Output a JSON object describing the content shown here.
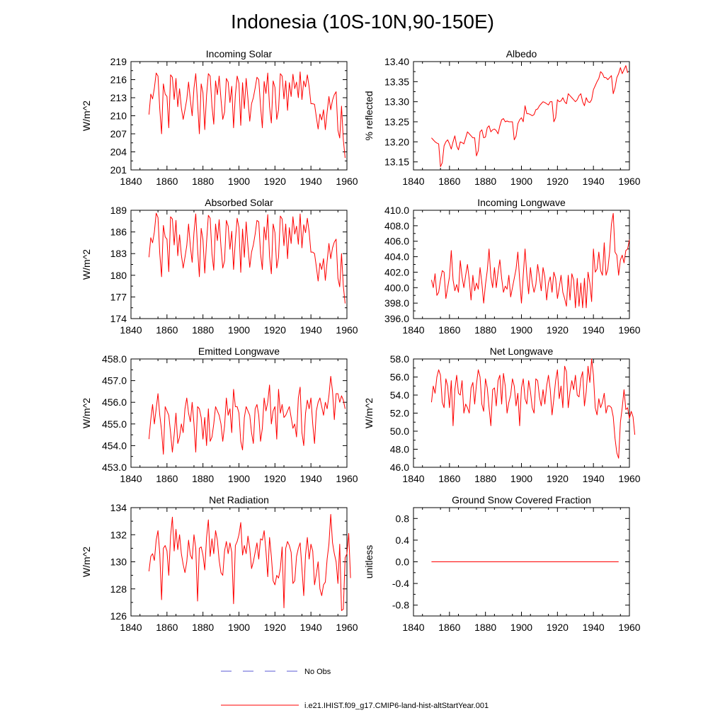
{
  "figure": {
    "title": "Indonesia (10S-10N,90-150E)"
  },
  "colors": {
    "model": "#ff0000",
    "obs": "#5a5ad6",
    "axis": "#000000"
  },
  "legend": {
    "items": [
      {
        "label": "No Obs",
        "style": "dashed",
        "color": "#5a5ad6"
      },
      {
        "label": "i.e21.IHIST.f09_g17.CMIP6-land-hist-altStartYear.001",
        "style": "solid",
        "color": "#ff0000"
      }
    ]
  },
  "chart_data": [
    {
      "type": "line",
      "title": "Incoming Solar",
      "ylabel": "W/m^2",
      "xlim": [
        1840,
        1960
      ],
      "ylim": [
        201,
        219
      ],
      "xticks": [
        "1840",
        "1860",
        "1880",
        "1900",
        "1920",
        "1940",
        "1960"
      ],
      "yticks": [
        "201",
        "204",
        "207",
        "210",
        "213",
        "216",
        "219"
      ],
      "x_start": 1850,
      "series": [
        {
          "values": [
            210.2,
            213.6,
            212.8,
            214.6,
            217.1,
            216.6,
            211.1,
            207.0,
            215.3,
            213.6,
            213.2,
            208.0,
            216.8,
            216.4,
            212.7,
            216.2,
            211.5,
            214.5,
            211.3,
            209.4,
            211.0,
            212.7,
            215.6,
            212.6,
            210.0,
            214.6,
            217.0,
            212.2,
            207.0,
            215.3,
            213.8,
            207.7,
            213.4,
            217.0,
            216.6,
            211.6,
            208.6,
            215.8,
            213.5,
            216.6,
            212.8,
            209.4,
            210.6,
            216.2,
            215.6,
            212.2,
            214.9,
            208.0,
            213.4,
            216.6,
            215.4,
            208.4,
            215.5,
            211.2,
            216.2,
            212.8,
            209.1,
            212.0,
            213.0,
            214.6,
            216.4,
            216.0,
            211.6,
            208.0,
            215.7,
            213.7,
            217.1,
            211.5,
            208.8,
            215.8,
            214.7,
            209.4,
            211.0,
            217.0,
            216.6,
            212.8,
            215.8,
            210.9,
            215.5,
            213.2,
            216.9,
            214.5,
            215.6,
            213.0,
            217.3,
            212.7,
            215.8,
            214.8,
            216.8,
            214.8,
            212.0,
            212.0,
            211.9,
            209.8,
            207.8,
            210.3,
            209.3,
            211.0,
            207.7,
            210.6,
            213.2,
            211.0,
            212.6,
            213.5,
            214.0,
            207.6,
            206.3,
            211.6,
            206.0,
            203.0
          ]
        }
      ]
    },
    {
      "type": "line",
      "title": "Albedo",
      "ylabel": "% reflected",
      "xlim": [
        1840,
        1960
      ],
      "ylim": [
        13.13,
        13.4
      ],
      "xticks": [
        "1840",
        "1860",
        "1880",
        "1900",
        "1920",
        "1940",
        "1960"
      ],
      "yticks": [
        "13.15",
        "13.20",
        "13.25",
        "13.30",
        "13.35",
        "13.40"
      ],
      "x_start": 1850,
      "series": [
        {
          "values": [
            13.21,
            13.205,
            13.2,
            13.197,
            13.195,
            13.138,
            13.148,
            13.19,
            13.2,
            13.205,
            13.195,
            13.182,
            13.2,
            13.215,
            13.19,
            13.18,
            13.2,
            13.198,
            13.195,
            13.21,
            13.225,
            13.22,
            13.215,
            13.21,
            13.21,
            13.165,
            13.178,
            13.225,
            13.23,
            13.21,
            13.212,
            13.235,
            13.24,
            13.225,
            13.23,
            13.232,
            13.228,
            13.22,
            13.24,
            13.255,
            13.258,
            13.25,
            13.252,
            13.25,
            13.25,
            13.25,
            13.205,
            13.214,
            13.245,
            13.255,
            13.26,
            13.25,
            13.29,
            13.27,
            13.27,
            13.268,
            13.265,
            13.268,
            13.28,
            13.282,
            13.29,
            13.295,
            13.3,
            13.298,
            13.295,
            13.292,
            13.3,
            13.3,
            13.25,
            13.26,
            13.305,
            13.3,
            13.302,
            13.31,
            13.3,
            13.295,
            13.32,
            13.315,
            13.31,
            13.305,
            13.3,
            13.305,
            13.315,
            13.32,
            13.3,
            13.29,
            13.31,
            13.3,
            13.298,
            13.305,
            13.33,
            13.34,
            13.35,
            13.358,
            13.375,
            13.37,
            13.36,
            13.36,
            13.355,
            13.36,
            13.365,
            13.32,
            13.335,
            13.36,
            13.37,
            13.385,
            13.37,
            13.38,
            13.39,
            13.372
          ]
        }
      ]
    },
    {
      "type": "line",
      "title": "Absorbed Solar",
      "ylabel": "W/m^2",
      "xlim": [
        1840,
        1960
      ],
      "ylim": [
        174,
        189
      ],
      "xticks": [
        "1840",
        "1860",
        "1880",
        "1900",
        "1920",
        "1940",
        "1960"
      ],
      "yticks": [
        "174",
        "177",
        "180",
        "183",
        "186",
        "189"
      ],
      "x_start": 1850,
      "series": [
        {
          "values": [
            182.5,
            185.2,
            184.5,
            186.0,
            188.6,
            188.0,
            183.0,
            179.8,
            186.9,
            185.3,
            185.0,
            180.5,
            188.1,
            187.8,
            184.2,
            187.6,
            182.7,
            185.6,
            182.8,
            181.0,
            182.5,
            184.1,
            187.1,
            184.0,
            181.8,
            185.9,
            188.5,
            183.7,
            179.8,
            186.5,
            184.9,
            180.3,
            184.6,
            188.3,
            187.9,
            183.0,
            180.7,
            187.1,
            184.8,
            187.7,
            184.0,
            181.0,
            182.0,
            187.6,
            186.8,
            183.6,
            186.1,
            180.8,
            184.8,
            187.9,
            186.6,
            180.4,
            186.4,
            182.5,
            187.4,
            184.0,
            181.1,
            183.2,
            184.2,
            185.7,
            187.6,
            187.4,
            183.0,
            180.8,
            186.7,
            184.9,
            188.4,
            182.6,
            180.2,
            187.1,
            185.9,
            181.0,
            182.5,
            188.2,
            187.8,
            184.1,
            187.1,
            182.3,
            186.6,
            184.4,
            188.1,
            185.7,
            186.8,
            184.3,
            188.5,
            183.8,
            187.0,
            185.9,
            187.9,
            186.0,
            183.2,
            183.2,
            183.0,
            181.2,
            179.2,
            181.7,
            180.8,
            182.3,
            179.3,
            181.9,
            184.4,
            182.3,
            183.8,
            184.6,
            185.0,
            179.6,
            178.4,
            183.0,
            178.5,
            176.1
          ]
        }
      ]
    },
    {
      "type": "line",
      "title": "Incoming Longwave",
      "ylabel": "",
      "xlim": [
        1840,
        1960
      ],
      "ylim": [
        396.0,
        410.0
      ],
      "xticks": [
        "1840",
        "1860",
        "1880",
        "1900",
        "1920",
        "1940",
        "1960"
      ],
      "yticks": [
        "396.0",
        "398.0",
        "400.0",
        "402.0",
        "404.0",
        "406.0",
        "408.0",
        "410.0"
      ],
      "x_start": 1850,
      "series": [
        {
          "values": [
            401.0,
            400.0,
            401.8,
            399.0,
            399.4,
            401.0,
            402.2,
            402.0,
            398.6,
            400.0,
            401.4,
            404.8,
            401.0,
            399.6,
            400.4,
            399.4,
            403.5,
            401.4,
            400.0,
            401.6,
            403.0,
            401.0,
            398.4,
            401.6,
            399.6,
            400.6,
            399.8,
            402.6,
            400.6,
            398.0,
            400.4,
            402.2,
            405.0,
            401.4,
            400.0,
            402.6,
            400.0,
            402.0,
            403.6,
            401.2,
            399.4,
            400.2,
            399.8,
            401.6,
            398.8,
            400.0,
            401.2,
            402.4,
            404.6,
            401.0,
            398.0,
            401.6,
            405.0,
            401.6,
            399.2,
            402.6,
            400.6,
            399.4,
            400.4,
            403.0,
            401.4,
            399.6,
            402.6,
            401.4,
            398.4,
            400.6,
            401.4,
            399.4,
            402.0,
            401.2,
            398.6,
            400.0,
            401.6,
            399.4,
            398.6,
            397.6,
            401.6,
            398.4,
            401.8,
            401.0,
            397.4,
            401.2,
            397.6,
            400.6,
            397.4,
            401.2,
            397.4,
            402.0,
            400.6,
            398.2,
            405.0,
            402.0,
            402.4,
            404.6,
            402.2,
            401.6,
            405.8,
            401.6,
            402.4,
            404.6,
            408.2,
            409.6,
            404.6,
            404.2,
            401.6,
            403.6,
            404.2,
            403.2,
            404.8,
            405.0,
            406.2
          ]
        }
      ]
    },
    {
      "type": "line",
      "title": "Emitted Longwave",
      "ylabel": "W/m^2",
      "xlim": [
        1840,
        1960
      ],
      "ylim": [
        453.0,
        458.0
      ],
      "xticks": [
        "1840",
        "1860",
        "1880",
        "1900",
        "1920",
        "1940",
        "1960"
      ],
      "yticks": [
        "453.0",
        "454.0",
        "455.0",
        "456.0",
        "457.0",
        "458.0"
      ],
      "x_start": 1850,
      "series": [
        {
          "values": [
            454.3,
            455.2,
            455.9,
            455.0,
            455.7,
            456.4,
            455.4,
            454.7,
            453.6,
            455.8,
            455.6,
            455.4,
            454.6,
            453.7,
            454.5,
            455.5,
            454.1,
            454.4,
            455.0,
            454.6,
            455.7,
            456.2,
            455.5,
            455.1,
            456.0,
            455.0,
            453.7,
            455.8,
            455.7,
            455.3,
            454.3,
            455.3,
            454.0,
            455.7,
            454.2,
            454.4,
            455.0,
            455.8,
            455.6,
            455.4,
            455.0,
            454.2,
            454.9,
            456.2,
            455.4,
            455.7,
            454.6,
            456.6,
            455.8,
            455.8,
            455.5,
            454.2,
            453.8,
            455.3,
            455.8,
            455.6,
            455.4,
            454.6,
            454.1,
            455.7,
            455.9,
            455.4,
            454.2,
            454.8,
            456.2,
            455.6,
            456.0,
            456.8,
            455.0,
            455.6,
            455.8,
            454.3,
            456.6,
            455.5,
            455.9,
            455.3,
            455.4,
            455.6,
            455.8,
            455.3,
            454.8,
            455.0,
            454.4,
            456.2,
            456.7,
            454.6,
            454.0,
            455.5,
            456.1,
            455.7,
            456.2,
            455.0,
            454.1,
            455.6,
            456.0,
            456.2,
            455.8,
            455.4,
            456.0,
            455.7,
            456.3,
            457.2,
            456.5,
            455.2,
            456.4,
            456.4,
            456.0,
            456.3,
            456.1,
            455.7
          ]
        }
      ]
    },
    {
      "type": "line",
      "title": "Net Longwave",
      "ylabel": "W/m^2",
      "xlim": [
        1840,
        1960
      ],
      "ylim": [
        46.0,
        58.0
      ],
      "xticks": [
        "1840",
        "1860",
        "1880",
        "1900",
        "1920",
        "1940",
        "1960"
      ],
      "yticks": [
        "46.0",
        "48.0",
        "50.0",
        "52.0",
        "54.0",
        "56.0",
        "58.0"
      ],
      "x_start": 1850,
      "series": [
        {
          "values": [
            53.2,
            55.0,
            54.2,
            56.0,
            56.8,
            56.2,
            53.2,
            52.6,
            55.8,
            55.0,
            52.6,
            55.6,
            50.6,
            54.6,
            56.2,
            54.2,
            54.0,
            55.6,
            52.0,
            53.0,
            52.6,
            52.0,
            54.8,
            55.4,
            53.0,
            55.2,
            56.8,
            56.0,
            53.0,
            52.2,
            55.8,
            54.8,
            52.6,
            50.6,
            54.6,
            54.8,
            52.8,
            55.6,
            56.2,
            53.0,
            56.4,
            55.0,
            52.0,
            53.2,
            54.0,
            55.8,
            55.0,
            52.8,
            54.2,
            50.6,
            54.8,
            55.8,
            53.6,
            53.0,
            55.6,
            54.4,
            52.6,
            52.0,
            55.8,
            55.6,
            53.8,
            52.8,
            54.6,
            53.0,
            55.0,
            56.2,
            54.6,
            51.8,
            53.6,
            55.6,
            56.8,
            53.6,
            55.0,
            52.6,
            57.2,
            56.6,
            52.6,
            54.4,
            55.6,
            54.6,
            56.2,
            54.0,
            53.8,
            55.8,
            56.6,
            52.8,
            54.4,
            57.2,
            55.4,
            58.0,
            56.2,
            52.6,
            51.8,
            53.6,
            52.6,
            53.2,
            54.2,
            52.0,
            52.8,
            52.8,
            52.6,
            51.6,
            49.2,
            47.6,
            47.0,
            51.0,
            52.6,
            54.6,
            52.4,
            52.6,
            51.4,
            52.2,
            51.6,
            49.6
          ]
        }
      ]
    },
    {
      "type": "line",
      "title": "Net Radiation",
      "ylabel": "W/m^2",
      "xlim": [
        1840,
        1960
      ],
      "ylim": [
        126,
        134
      ],
      "xticks": [
        "1840",
        "1860",
        "1880",
        "1900",
        "1920",
        "1940",
        "1960"
      ],
      "yticks": [
        "126",
        "128",
        "130",
        "132",
        "134"
      ],
      "x_start": 1850,
      "series": [
        {
          "values": [
            129.3,
            130.4,
            130.6,
            130.1,
            131.6,
            132.3,
            130.6,
            127.2,
            131.0,
            131.2,
            130.8,
            129.0,
            131.9,
            133.3,
            130.8,
            132.4,
            130.9,
            132.0,
            130.6,
            129.8,
            129.2,
            130.0,
            131.6,
            130.5,
            130.2,
            132.0,
            131.0,
            127.1,
            131.0,
            131.1,
            130.5,
            129.4,
            131.8,
            133.1,
            130.4,
            131.7,
            130.6,
            132.3,
            131.6,
            130.1,
            129.2,
            129.0,
            130.8,
            131.5,
            130.6,
            131.4,
            130.7,
            126.9,
            131.2,
            131.5,
            132.0,
            132.9,
            130.5,
            131.2,
            130.6,
            131.9,
            131.0,
            129.5,
            130.0,
            130.7,
            131.4,
            130.2,
            131.7,
            131.6,
            132.3,
            130.8,
            128.9,
            131.8,
            130.4,
            128.6,
            128.3,
            129.0,
            128.8,
            129.5,
            131.1,
            126.6,
            131.0,
            131.5,
            131.2,
            130.7,
            128.4,
            128.6,
            130.4,
            131.0,
            131.4,
            129.5,
            127.5,
            130.5,
            131.8,
            130.2,
            131.3,
            130.8,
            128.3,
            129.1,
            130.0,
            128.0,
            127.5,
            128.3,
            128.5,
            130.2,
            131.3,
            133.5,
            131.4,
            130.6,
            130.0,
            128.4,
            131.3,
            126.4,
            126.5,
            130.3,
            130.6,
            132.1,
            128.8
          ]
        }
      ]
    },
    {
      "type": "line",
      "title": "Ground Snow Covered Fraction",
      "ylabel": "unitless",
      "xlim": [
        1840,
        1960
      ],
      "ylim": [
        -1.0,
        1.0
      ],
      "xticks": [
        "1840",
        "1860",
        "1880",
        "1900",
        "1920",
        "1940",
        "1960"
      ],
      "yticks": [
        "-0.8",
        "-0.4",
        "0.0",
        "0.4",
        "0.8"
      ],
      "x_start": 1850,
      "series": [
        {
          "values": [
            0.0,
            0.0
          ]
        }
      ],
      "x_values": [
        1850,
        1954
      ]
    }
  ]
}
